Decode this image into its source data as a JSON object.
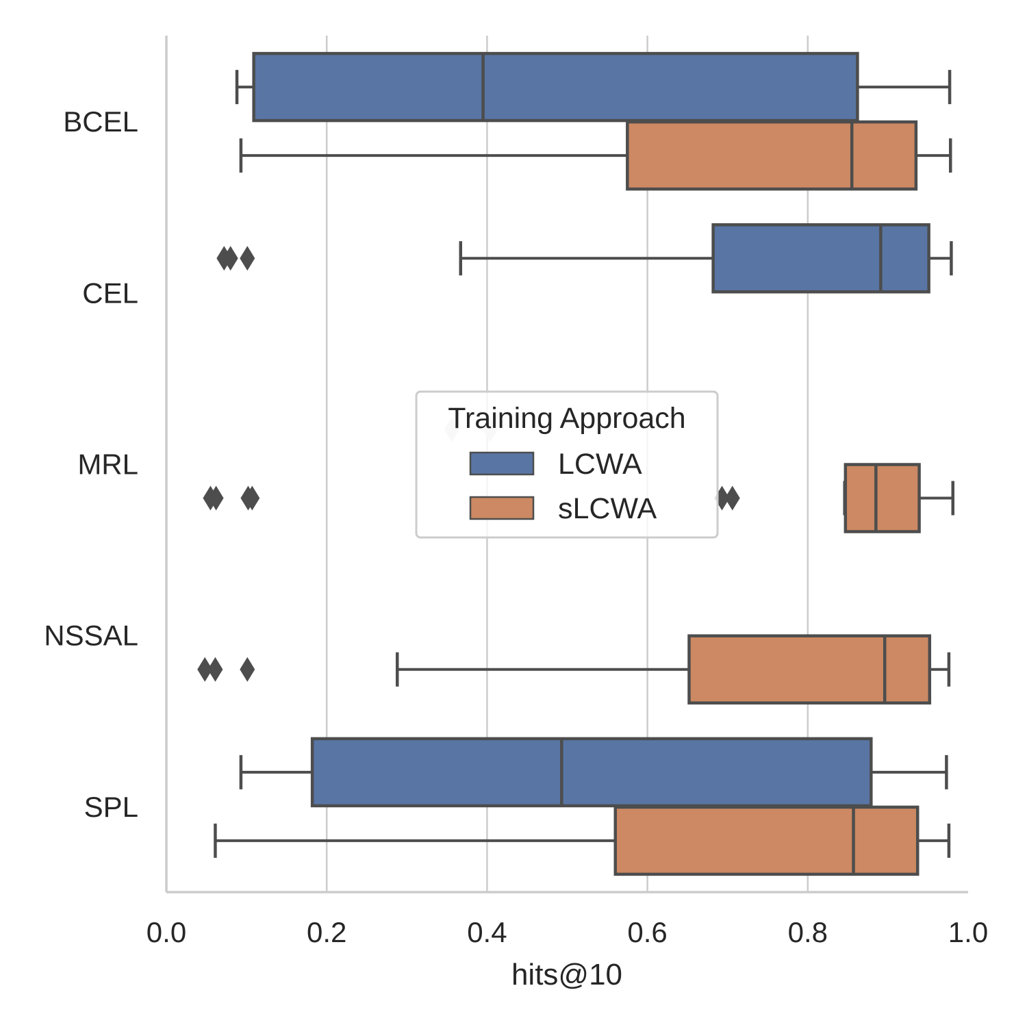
{
  "chart_data": {
    "type": "box",
    "orientation": "horizontal",
    "title": "",
    "xlabel": "hits@10",
    "ylabel": "",
    "xlim": [
      0.0,
      1.0
    ],
    "xticks": [
      "0.0",
      "0.2",
      "0.4",
      "0.6",
      "0.8",
      "1.0"
    ],
    "categories": [
      "BCEL",
      "CEL",
      "MRL",
      "NSSAL",
      "SPL"
    ],
    "grid": "vertical",
    "legend": {
      "title": "Training Approach",
      "placement": "center",
      "entries": [
        "LCWA",
        "sLCWA"
      ]
    },
    "colors": {
      "LCWA": "#5875a4",
      "sLCWA": "#cc8963",
      "edge": "#4d4d4d",
      "grid": "#cccccc",
      "faded_outlier": "#d9d9d9"
    },
    "series": [
      {
        "name": "LCWA",
        "boxes": [
          {
            "category": "BCEL",
            "whislo": 0.088,
            "q1": 0.109,
            "median": 0.395,
            "q3": 0.862,
            "whishi": 0.977,
            "fliers": []
          },
          {
            "category": "CEL",
            "whislo": 0.367,
            "q1": 0.682,
            "median": 0.891,
            "q3": 0.951,
            "whishi": 0.979,
            "fliers": [
              0.072,
              0.08,
              0.101
            ]
          },
          {
            "category": "MRL",
            "whislo": null,
            "q1": null,
            "median": null,
            "q3": null,
            "whishi": null,
            "fliers": [
              0.356,
              0.404
            ]
          },
          {
            "category": "NSSAL",
            "whislo": null,
            "q1": null,
            "median": null,
            "q3": null,
            "whishi": null,
            "fliers": []
          },
          {
            "category": "SPL",
            "whislo": 0.093,
            "q1": 0.182,
            "median": 0.493,
            "q3": 0.879,
            "whishi": 0.973,
            "fliers": []
          }
        ]
      },
      {
        "name": "sLCWA",
        "boxes": [
          {
            "category": "BCEL",
            "whislo": 0.093,
            "q1": 0.575,
            "median": 0.855,
            "q3": 0.935,
            "whishi": 0.978,
            "fliers": []
          },
          {
            "category": "CEL",
            "whislo": null,
            "q1": null,
            "median": null,
            "q3": null,
            "whishi": null,
            "fliers": []
          },
          {
            "category": "MRL",
            "whislo": 0.846,
            "q1": 0.847,
            "median": 0.885,
            "q3": 0.939,
            "whishi": 0.981,
            "fliers": [
              0.055,
              0.062,
              0.102,
              0.107,
              0.693,
              0.706
            ]
          },
          {
            "category": "NSSAL",
            "whislo": 0.288,
            "q1": 0.652,
            "median": 0.896,
            "q3": 0.952,
            "whishi": 0.976,
            "fliers": [
              0.048,
              0.061,
              0.101
            ]
          },
          {
            "category": "SPL",
            "whislo": 0.061,
            "q1": 0.56,
            "median": 0.857,
            "q3": 0.937,
            "whishi": 0.976,
            "fliers": []
          }
        ]
      }
    ]
  }
}
